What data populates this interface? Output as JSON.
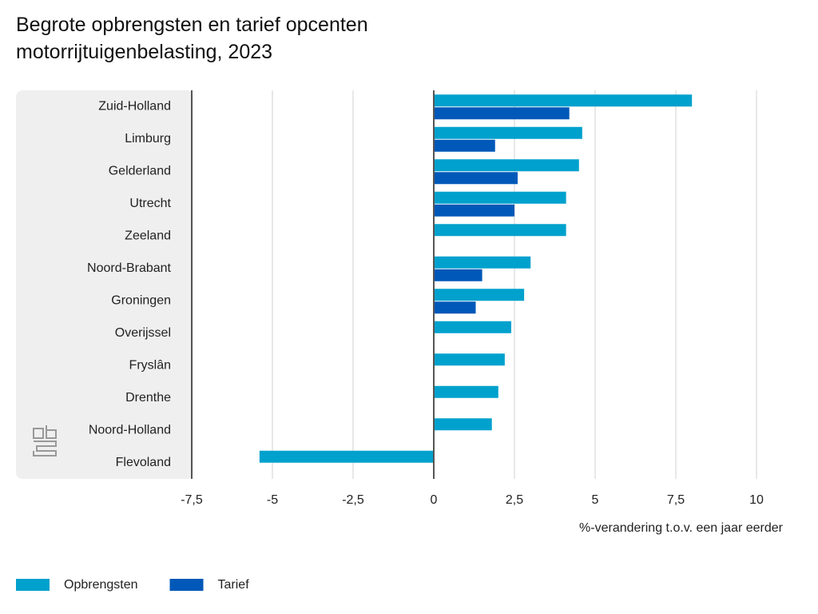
{
  "chart_data": {
    "type": "bar",
    "orientation": "horizontal",
    "title": "Begrote opbrengsten en tarief opcenten motorrijtuigenbelasting, 2023",
    "x_label": "%-verandering t.o.v. een jaar eerder",
    "categories": [
      "Zuid-Holland",
      "Limburg",
      "Gelderland",
      "Utrecht",
      "Zeeland",
      "Noord-Brabant",
      "Groningen",
      "Overijssel",
      "Fryslân",
      "Drenthe",
      "Noord-Holland",
      "Flevoland"
    ],
    "series": [
      {
        "name": "Opbrengsten",
        "color": "#00a1cd",
        "values": [
          8.0,
          4.6,
          4.5,
          4.1,
          4.1,
          3.0,
          2.8,
          2.4,
          2.2,
          2.0,
          1.8,
          -5.4
        ]
      },
      {
        "name": "Tarief",
        "color": "#0058b8",
        "values": [
          4.2,
          1.9,
          2.6,
          2.5,
          0,
          1.5,
          1.3,
          0,
          0,
          0,
          0,
          0
        ]
      }
    ],
    "xlim": [
      -7.5,
      10
    ],
    "xticks": [
      {
        "value": -7.5,
        "label": "-7,5"
      },
      -5,
      {
        "value": -2.5,
        "label": "-2,5"
      },
      0,
      {
        "value": 2.5,
        "label": "2,5"
      },
      5,
      {
        "value": 7.5,
        "label": "7,5"
      },
      10
    ],
    "grid": true,
    "legend": "bottom-left"
  }
}
